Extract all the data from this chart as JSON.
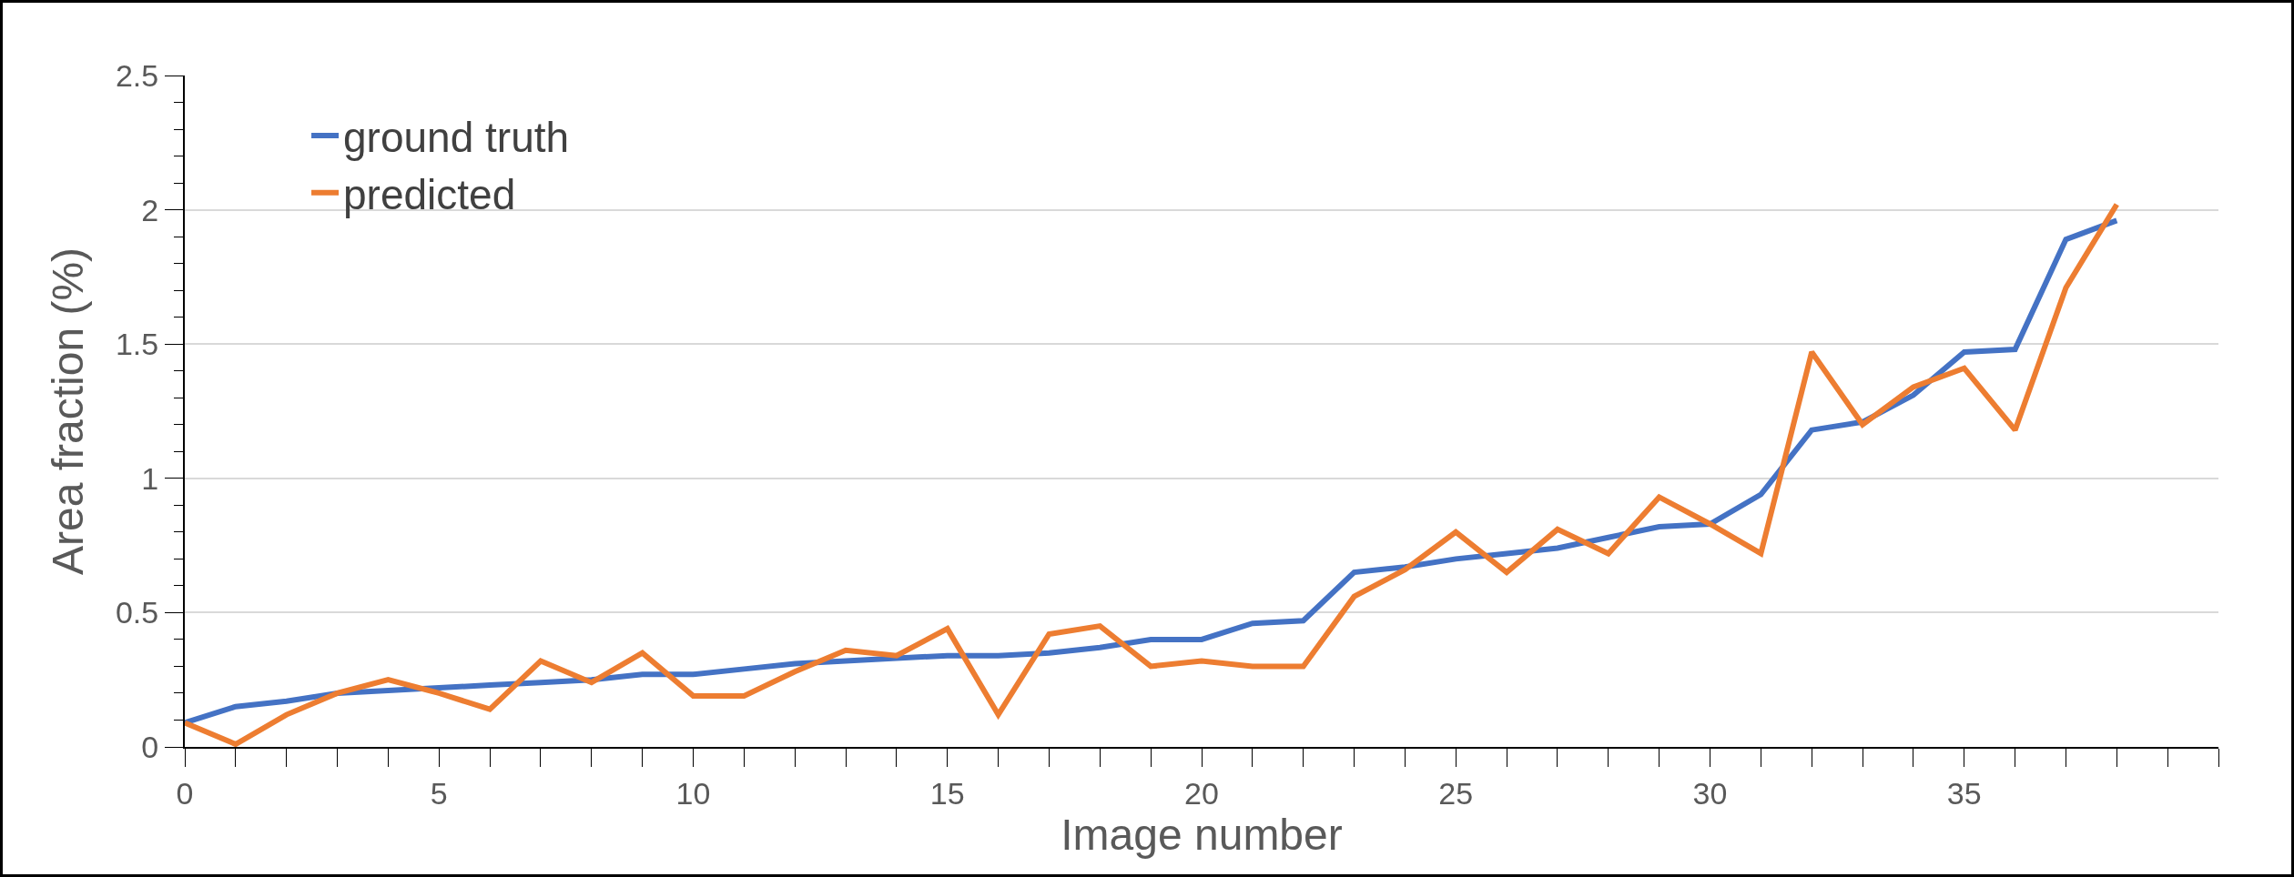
{
  "chart_data": {
    "type": "line",
    "xlabel": "Image number",
    "ylabel": "Area fraction (%)",
    "x": [
      0,
      1,
      2,
      3,
      4,
      5,
      6,
      7,
      8,
      9,
      10,
      11,
      12,
      13,
      14,
      15,
      16,
      17,
      18,
      19,
      20,
      21,
      22,
      23,
      24,
      25,
      26,
      27,
      28,
      29,
      30,
      31,
      32,
      33,
      34,
      35,
      36,
      37,
      38
    ],
    "series": [
      {
        "name": "ground truth",
        "color": "#4472c4",
        "values": [
          0.09,
          0.15,
          0.17,
          0.2,
          0.21,
          0.22,
          0.23,
          0.24,
          0.25,
          0.27,
          0.27,
          0.29,
          0.31,
          0.32,
          0.33,
          0.34,
          0.34,
          0.35,
          0.37,
          0.4,
          0.4,
          0.46,
          0.47,
          0.65,
          0.67,
          0.7,
          0.72,
          0.74,
          0.78,
          0.82,
          0.83,
          0.94,
          1.18,
          1.21,
          1.31,
          1.47,
          1.48,
          1.89,
          1.96
        ]
      },
      {
        "name": "predicted",
        "color": "#ed7d31",
        "values": [
          0.09,
          0.01,
          0.12,
          0.2,
          0.25,
          0.2,
          0.14,
          0.32,
          0.24,
          0.35,
          0.19,
          0.19,
          0.28,
          0.36,
          0.34,
          0.44,
          0.12,
          0.42,
          0.45,
          0.3,
          0.32,
          0.3,
          0.3,
          0.56,
          0.66,
          0.8,
          0.65,
          0.81,
          0.72,
          0.93,
          0.83,
          0.72,
          1.47,
          1.2,
          1.34,
          1.41,
          1.18,
          1.71,
          2.02
        ]
      }
    ],
    "xlim": [
      0,
      40
    ],
    "xticks": [
      0,
      5,
      10,
      15,
      20,
      25,
      30,
      35
    ],
    "ylim": [
      0,
      2.5
    ],
    "yticks": [
      0,
      0.5,
      1,
      1.5,
      2,
      2.5
    ],
    "grid": "y",
    "legend": "top left",
    "marker": "none",
    "line_style": "solid"
  }
}
